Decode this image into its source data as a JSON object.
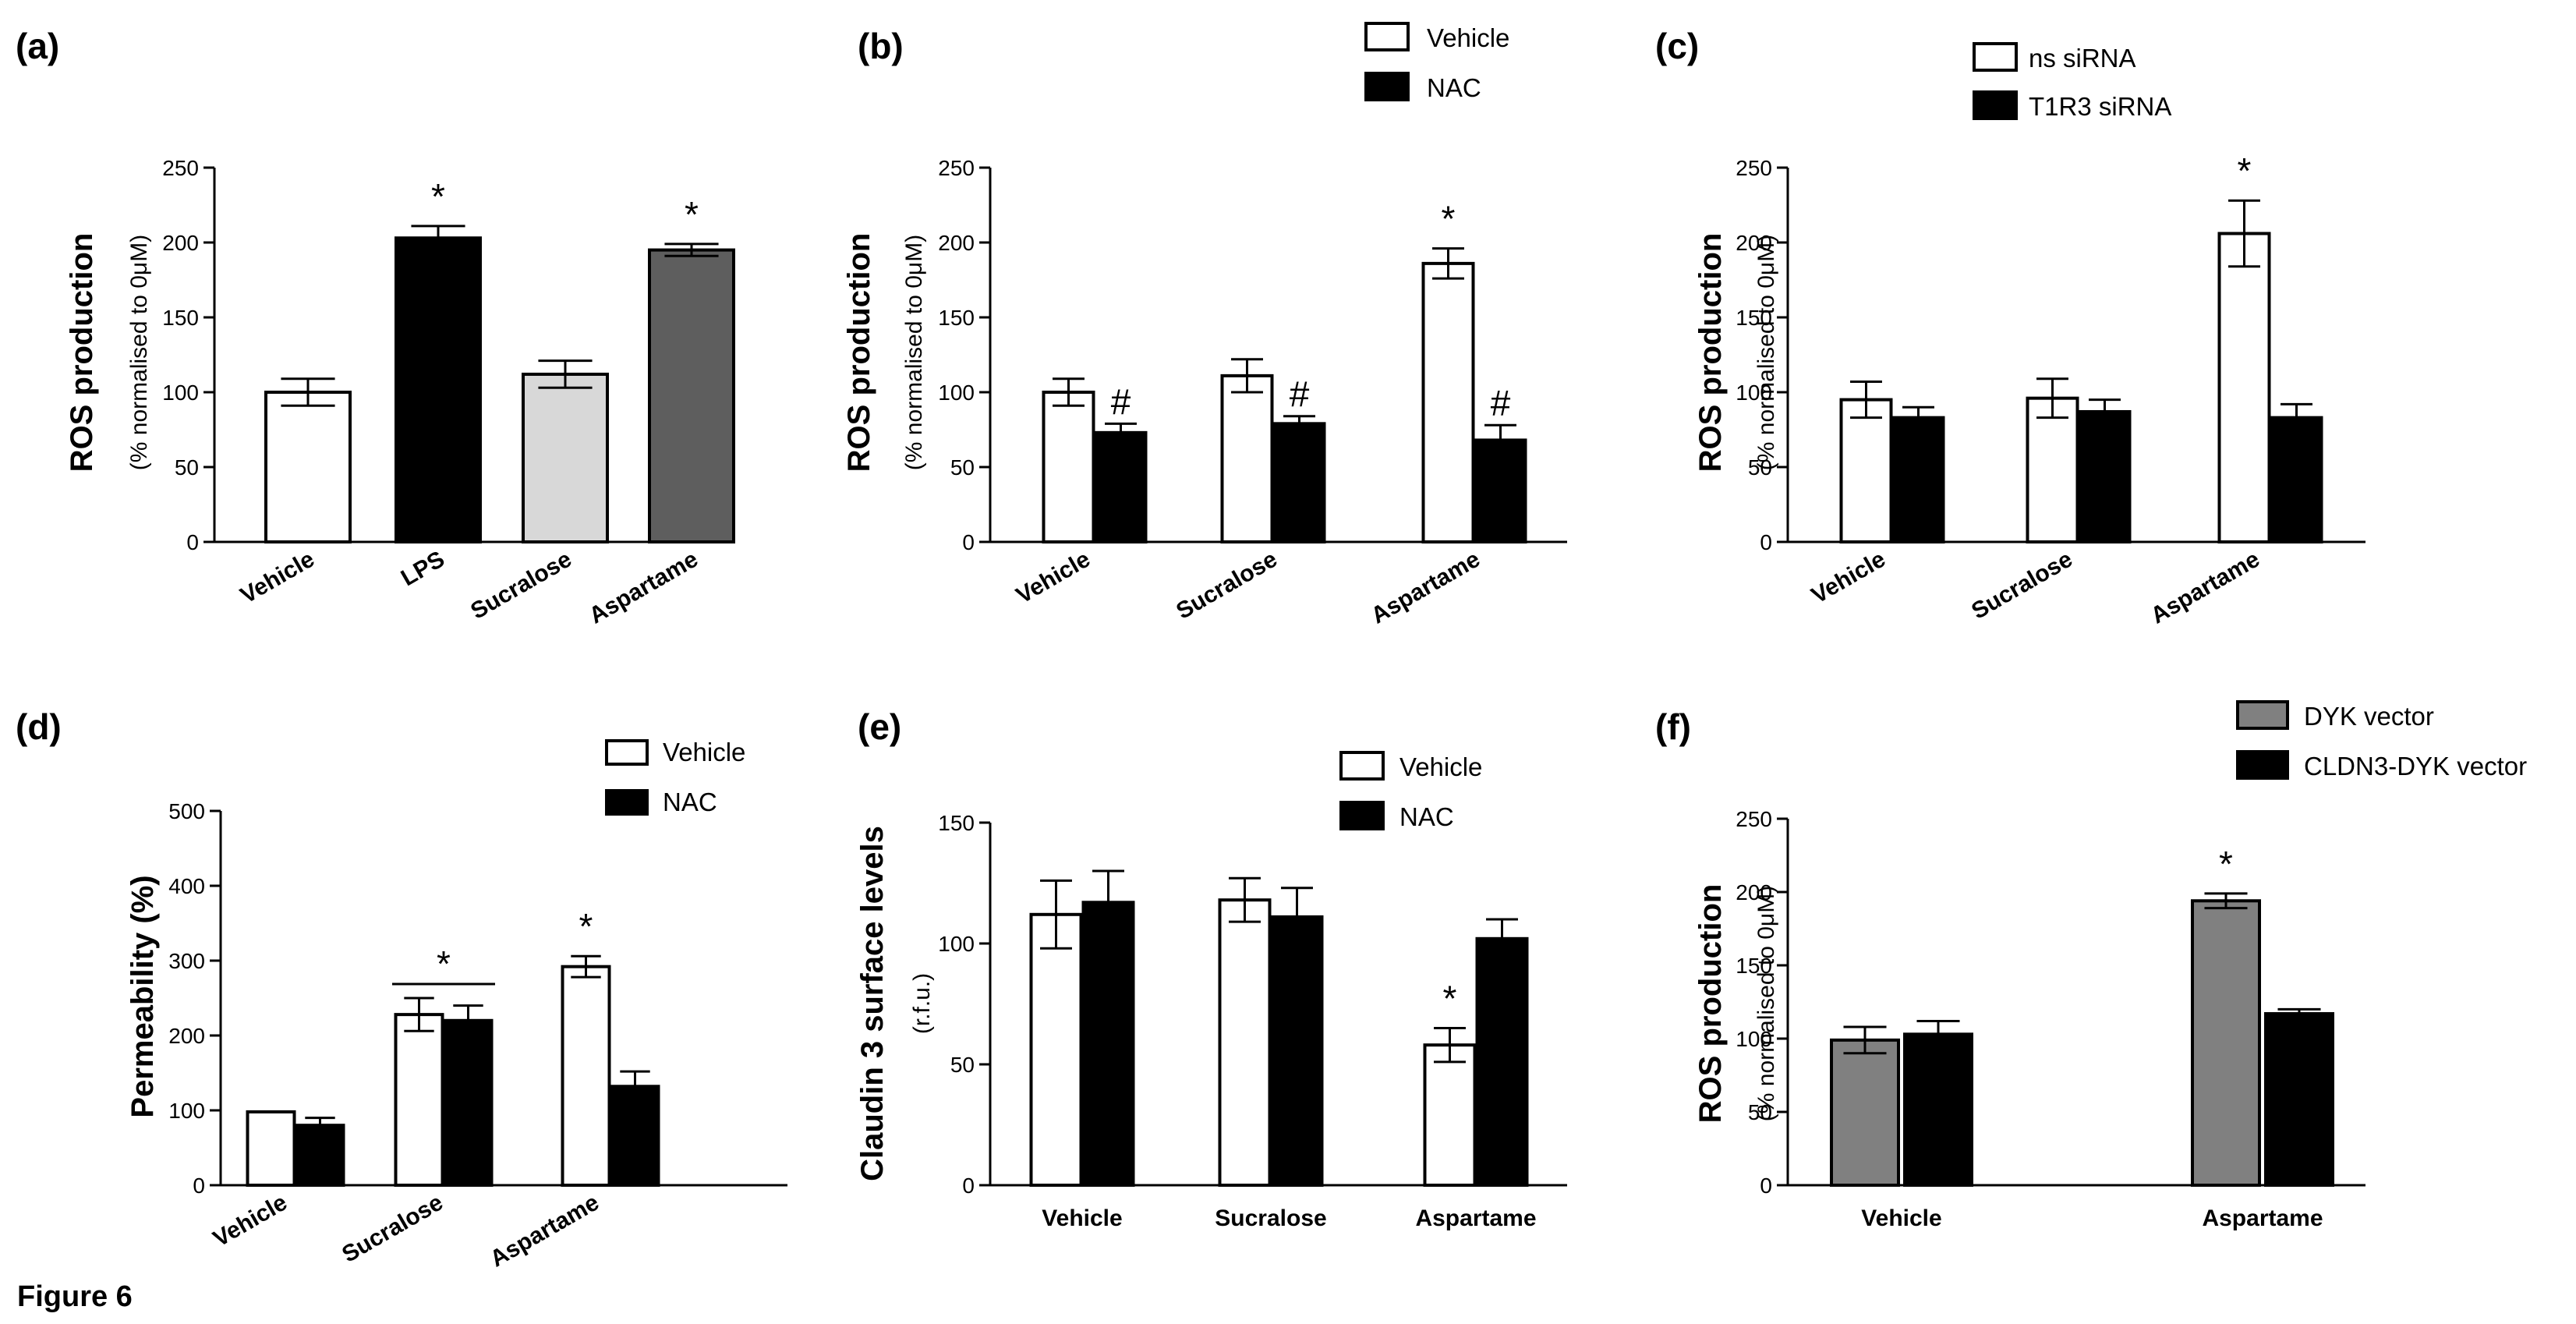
{
  "figure_label": "Figure 6",
  "chart_data": [
    {
      "panel": "(a)",
      "type": "bar",
      "categories": [
        "Vehicle",
        "LPS",
        "Sucralose",
        "Aspartame"
      ],
      "series": [
        {
          "name": "",
          "values": [
            100,
            203,
            112,
            195
          ],
          "errors": [
            9,
            8,
            9,
            4
          ],
          "colors": [
            "#ffffff",
            "#000000",
            "#d8d8d8",
            "#5e5e5e"
          ]
        }
      ],
      "significance": [
        "",
        "*",
        "",
        "*"
      ],
      "ylabel": "ROS production",
      "ylabel_sub": "(% normalised to 0μM)",
      "ylim": [
        0,
        250
      ],
      "yticks": [
        "0",
        "50",
        "100",
        "150",
        "200",
        "250"
      ],
      "legend": []
    },
    {
      "panel": "(b)",
      "type": "bar",
      "categories": [
        "Vehicle",
        "Sucralose",
        "Aspartame"
      ],
      "series": [
        {
          "name": "Vehicle",
          "color": "#ffffff",
          "values": [
            100,
            111,
            186
          ],
          "errors": [
            9,
            11,
            10
          ],
          "significance": [
            "",
            "",
            "*"
          ]
        },
        {
          "name": "NAC",
          "color": "#000000",
          "values": [
            73,
            79,
            68
          ],
          "errors": [
            6,
            5,
            10
          ],
          "significance": [
            "#",
            "#",
            "#"
          ]
        }
      ],
      "ylabel": "ROS production",
      "ylabel_sub": "(% normalised to 0μM)",
      "ylim": [
        0,
        250
      ],
      "yticks": [
        "0",
        "50",
        "100",
        "150",
        "200",
        "250"
      ],
      "legend": [
        "Vehicle",
        "NAC"
      ]
    },
    {
      "panel": "(c)",
      "type": "bar",
      "categories": [
        "Vehicle",
        "Sucralose",
        "Aspartame"
      ],
      "series": [
        {
          "name": "ns siRNA",
          "color": "#ffffff",
          "values": [
            95,
            96,
            206
          ],
          "errors": [
            12,
            13,
            22
          ],
          "significance": [
            "",
            "",
            "*"
          ]
        },
        {
          "name": "T1R3 siRNA",
          "color": "#000000",
          "values": [
            83,
            87,
            83
          ],
          "errors": [
            7,
            8,
            9
          ],
          "significance": [
            "",
            "",
            ""
          ]
        }
      ],
      "ylabel": "ROS production",
      "ylabel_sub": "(% normalised to 0μM)",
      "ylim": [
        0,
        250
      ],
      "yticks": [
        "0",
        "50",
        "100",
        "150",
        "200",
        "250"
      ],
      "legend": [
        "ns siRNA",
        "T1R3 siRNA"
      ]
    },
    {
      "panel": "(d)",
      "type": "bar",
      "categories": [
        "Vehicle",
        "Sucralose",
        "Aspartame"
      ],
      "series": [
        {
          "name": "Vehicle",
          "color": "#ffffff",
          "values": [
            98,
            228,
            292
          ],
          "errors": [
            0,
            22,
            14
          ],
          "significance": [
            "",
            "",
            "*"
          ]
        },
        {
          "name": "NAC",
          "color": "#000000",
          "values": [
            80,
            220,
            132
          ],
          "errors": [
            10,
            20,
            20
          ],
          "significance": [
            "",
            "",
            ""
          ]
        }
      ],
      "group_significance": [
        "",
        "*",
        ""
      ],
      "ylabel": "Permeability (%)",
      "ylabel_sub": "",
      "ylim": [
        0,
        500
      ],
      "yticks": [
        "0",
        "100",
        "200",
        "300",
        "400",
        "500"
      ],
      "legend": [
        "Vehicle",
        "NAC"
      ]
    },
    {
      "panel": "(e)",
      "type": "bar",
      "categories": [
        "Vehicle",
        "Sucralose",
        "Aspartame"
      ],
      "series": [
        {
          "name": "Vehicle",
          "color": "#ffffff",
          "values": [
            112,
            118,
            58
          ],
          "errors": [
            14,
            9,
            7
          ],
          "significance": [
            "",
            "",
            "*"
          ]
        },
        {
          "name": "NAC",
          "color": "#000000",
          "values": [
            117,
            111,
            102
          ],
          "errors": [
            13,
            12,
            8
          ],
          "significance": [
            "",
            "",
            ""
          ]
        }
      ],
      "ylabel": "Claudin 3 surface levels",
      "ylabel_sub": "(r.f.u.)",
      "ylim": [
        0,
        150
      ],
      "yticks": [
        "0",
        "50",
        "100",
        "150"
      ],
      "legend": [
        "Vehicle",
        "NAC"
      ]
    },
    {
      "panel": "(f)",
      "type": "bar",
      "categories": [
        "Vehicle",
        "Aspartame"
      ],
      "series": [
        {
          "name": "DYK vector",
          "color": "#808080",
          "values": [
            99,
            194
          ],
          "errors": [
            9,
            5
          ],
          "significance": [
            "",
            "*"
          ]
        },
        {
          "name": "CLDN3-DYK vector",
          "color": "#000000",
          "values": [
            103,
            117
          ],
          "errors": [
            9,
            3
          ],
          "significance": [
            "",
            ""
          ]
        }
      ],
      "ylabel": "ROS production",
      "ylabel_sub": "(% normalised to 0μM)",
      "ylim": [
        0,
        250
      ],
      "yticks": [
        "0",
        "50",
        "100",
        "150",
        "200",
        "250"
      ],
      "legend": [
        "DYK vector",
        "CLDN3-DYK vector"
      ]
    }
  ]
}
